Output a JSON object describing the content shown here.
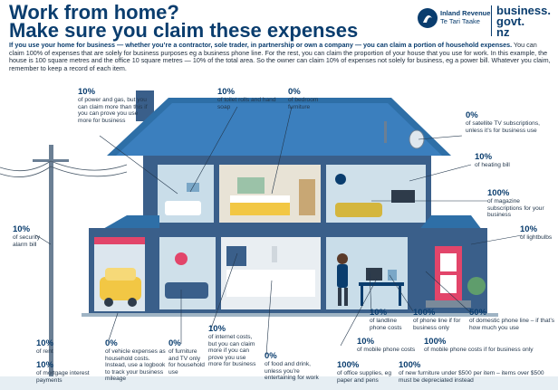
{
  "header": {
    "title_line1": "Work from home?",
    "title_line2": "Make sure you claim these expenses",
    "logo_ir_line1": "Inland Revenue",
    "logo_ir_line2": "Te Tari Taake",
    "logo_bg_line1": "business.",
    "logo_bg_line2": "govt.",
    "logo_bg_line3": "nz"
  },
  "intro": {
    "p1_bold": "If you use your home for business — whether you’re a contractor, sole trader, in partnership or own a company — you can claim a portion of household expenses.",
    "p1_rest": " You can claim 100% of expenses that are solely for business purposes eg a business phone line. For the rest, you can claim the proportion of your house that you use for work. In this example, the house is 100 square metres and the office 10 square metres — 10% of the total area. So the owner can claim 10% of expenses not solely for business, eg a power bill. Whatever you claim, remember to keep a record of each item."
  },
  "colors": {
    "navy": "#0a3d6e",
    "roof": "#2e6fa7",
    "wall": "#3a5f8a",
    "window": "#c7dbe8",
    "door": "#e2456a",
    "accent_yellow": "#f2c744"
  },
  "annotations": [
    {
      "pct": "10%",
      "text": "of power and gas, but you can claim more than this if you can prove you use more for business"
    },
    {
      "pct": "10%",
      "text": "of toilet rolls and hand soap"
    },
    {
      "pct": "0%",
      "text": "of bedroom furniture"
    },
    {
      "pct": "0%",
      "text": "of satellite TV subscriptions, unless it’s for business use"
    },
    {
      "pct": "10%",
      "text": "of heating bill"
    },
    {
      "pct": "100%",
      "text": "of magazine subscriptions for your business"
    },
    {
      "pct": "10%",
      "text": "of lightbulbs"
    },
    {
      "pct": "10%",
      "text": "of security alarm bill"
    },
    {
      "pct": "10%",
      "text": "of landline phone costs"
    },
    {
      "pct": "100%",
      "text": "of phone line if for business only"
    },
    {
      "pct": "50%",
      "text": "of domestic phone line – if that’s how much you use"
    },
    {
      "pct": "10%",
      "text": "of mobile phone costs"
    },
    {
      "pct": "100%",
      "text": "of mobile phone costs if for business only"
    },
    {
      "pct": "10%",
      "text": "of rent"
    },
    {
      "pct": "10%",
      "text": "of mortgage interest payments"
    },
    {
      "pct": "0%",
      "text": "of vehicle expenses as household costs. Instead, use a logbook to track your business mileage"
    },
    {
      "pct": "0%",
      "text": "of furniture and TV only for household use"
    },
    {
      "pct": "10%",
      "text": "of internet costs, but you can claim more if you can prove you use more for business"
    },
    {
      "pct": "0%",
      "text": "of food and drink, unless you’re entertaining for work"
    },
    {
      "pct": "100%",
      "text": "of office supplies, eg paper and pens"
    },
    {
      "pct": "100%",
      "text": "of new furniture under $500 per item – items over $500 must be depreciated instead"
    }
  ]
}
